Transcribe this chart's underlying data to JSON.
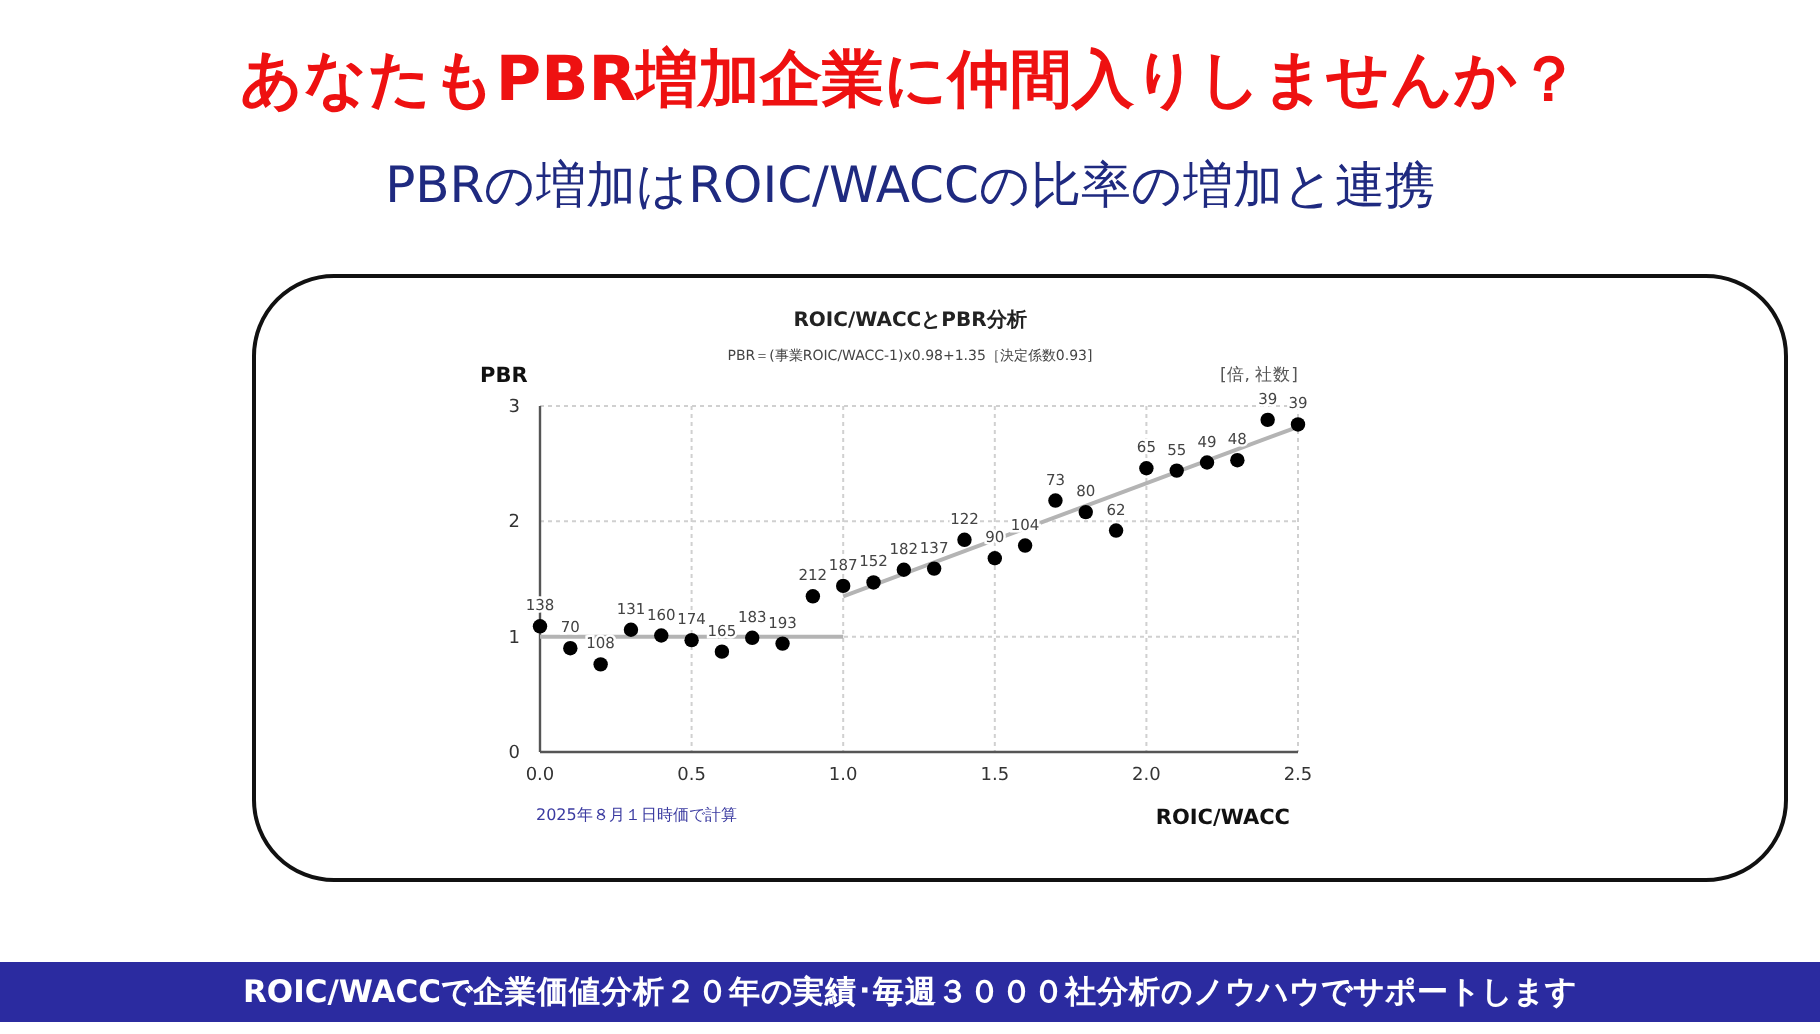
{
  "chart_data": {
    "type": "scatter",
    "title": "ROIC/WACCとPBR分析",
    "subtitle": "PBR＝(事業ROIC/WACC-1)x0.98+1.35［決定係数0.93]",
    "xlabel": "ROIC/WACC",
    "ylabel": "PBR",
    "annotations": [
      "あなたもPBR増加企業に仲間入りしませんか？",
      "PBRの増加はROIC/WACCの比率の増加と連携",
      "[倍, 社数]",
      "2025年８月１日時価で計算",
      "ROIC/WACCで企業価値分析２０年の実績･毎週３０００社分析のノウハウでサポートします",
      {
        "text": "138",
        "x": 0,
        "y": 1.09
      },
      {
        "text": "70",
        "x": 0.1,
        "y": 0.9
      },
      {
        "text": "108",
        "x": 0.2,
        "y": 0.76
      },
      {
        "text": "131",
        "x": 0.3,
        "y": 1.06
      },
      {
        "text": "160",
        "x": 0.4,
        "y": 1.01
      },
      {
        "text": "174",
        "x": 0.5,
        "y": 0.97
      },
      {
        "text": "165",
        "x": 0.6,
        "y": 0.87
      },
      {
        "text": "183",
        "x": 0.7,
        "y": 0.99
      },
      {
        "text": "193",
        "x": 0.8,
        "y": 0.94
      },
      {
        "text": "212",
        "x": 0.9,
        "y": 1.35
      },
      {
        "text": "187",
        "x": 1.0,
        "y": 1.44
      },
      {
        "text": "152",
        "x": 1.1,
        "y": 1.47
      },
      {
        "text": "182",
        "x": 1.2,
        "y": 1.58
      },
      {
        "text": "137",
        "x": 1.3,
        "y": 1.59
      },
      {
        "text": "122",
        "x": 1.4,
        "y": 1.84
      },
      {
        "text": "90",
        "x": 1.5,
        "y": 1.68
      },
      {
        "text": "104",
        "x": 1.6,
        "y": 1.79
      },
      {
        "text": "73",
        "x": 1.7,
        "y": 2.18
      },
      {
        "text": "80",
        "x": 1.8,
        "y": 2.08
      },
      {
        "text": "62",
        "x": 1.9,
        "y": 1.92
      },
      {
        "text": "65",
        "x": 2.0,
        "y": 2.46
      },
      {
        "text": "55",
        "x": 2.1,
        "y": 2.44
      },
      {
        "text": "49",
        "x": 2.2,
        "y": 2.51
      },
      {
        "text": "48",
        "x": 2.3,
        "y": 2.53
      },
      {
        "text": "39",
        "x": 2.4,
        "y": 2.88
      },
      {
        "text": "39",
        "x": 2.5,
        "y": 2.84
      }
    ],
    "xlim": [
      0,
      2.5
    ],
    "ylim": [
      0,
      3
    ],
    "xticks": [
      {
        "value": 0,
        "label": "0.0"
      },
      0.5,
      {
        "value": 1,
        "label": "1.0"
      },
      1.5,
      {
        "value": 2,
        "label": "2.0"
      },
      2.5
    ],
    "yticks": [
      0,
      1,
      2,
      3
    ],
    "grid": true,
    "series": [
      {
        "color": "#000000",
        "marker": "circle",
        "x": [
          0,
          0.1,
          0.2,
          0.3,
          0.4,
          0.5,
          0.6,
          0.7,
          0.8,
          0.9,
          1.0,
          1.1,
          1.2,
          1.3,
          1.4,
          1.5,
          1.6,
          1.7,
          1.8,
          1.9,
          2.0,
          2.1,
          2.2,
          2.3,
          2.4,
          2.5
        ],
        "values": [
          1.09,
          0.9,
          0.76,
          1.06,
          1.01,
          0.97,
          0.87,
          0.99,
          0.94,
          1.35,
          1.44,
          1.47,
          1.58,
          1.59,
          1.84,
          1.68,
          1.79,
          2.18,
          2.08,
          1.92,
          2.46,
          2.44,
          2.51,
          2.53,
          2.88,
          2.84
        ]
      },
      {
        "type": "line",
        "color": "#b4b4b4",
        "x": [
          0,
          1.0
        ],
        "values": [
          1,
          1
        ]
      },
      {
        "type": "line",
        "color": "#b4b4b4",
        "x": [
          1.0,
          2.5
        ],
        "values": [
          1.35,
          2.82
        ]
      }
    ]
  }
}
